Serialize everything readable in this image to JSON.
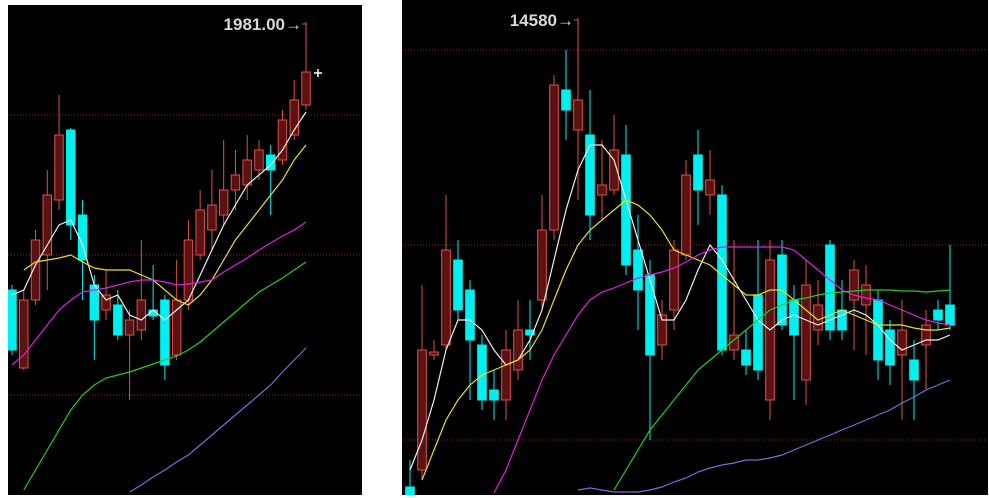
{
  "chart_data": [
    {
      "type": "candlestick",
      "annotation": {
        "value": 1981,
        "label": "1981.00→"
      },
      "ylim": [
        1035,
        2015
      ],
      "up_color": "#e0504a",
      "down_color": "#00f0f0",
      "open": [
        1445,
        1289,
        1425,
        1515,
        1625,
        1765,
        1595,
        1455,
        1405,
        1415,
        1355,
        1365,
        1405,
        1425,
        1315,
        1425,
        1515,
        1565,
        1595,
        1645,
        1655,
        1685,
        1715,
        1705,
        1755,
        1815
      ],
      "high": [
        1455,
        1445,
        1565,
        1685,
        1835,
        1769,
        1625,
        1475,
        1485,
        1445,
        1405,
        1545,
        1495,
        1435,
        1505,
        1585,
        1645,
        1685,
        1745,
        1725,
        1755,
        1745,
        1735,
        1805,
        1865,
        1981
      ],
      "low": [
        1315,
        1285,
        1415,
        1445,
        1605,
        1545,
        1425,
        1305,
        1385,
        1345,
        1225,
        1345,
        1385,
        1265,
        1305,
        1405,
        1505,
        1525,
        1575,
        1605,
        1625,
        1665,
        1595,
        1695,
        1745,
        1805
      ],
      "close": [
        1325,
        1425,
        1545,
        1635,
        1755,
        1575,
        1505,
        1385,
        1435,
        1355,
        1385,
        1425,
        1393,
        1295,
        1425,
        1545,
        1605,
        1615,
        1645,
        1675,
        1705,
        1725,
        1685,
        1785,
        1825,
        1881
      ],
      "lines": [
        {
          "color": "#f0f0f0",
          "values": [
            1435,
            1445,
            1495,
            1535,
            1575,
            1585,
            1535,
            1455,
            1425,
            1435,
            1395,
            1385,
            1405,
            1385,
            1405,
            1425,
            1475,
            1525,
            1575,
            1615,
            1655,
            1675,
            1695,
            1725,
            1765,
            1801
          ]
        },
        {
          "color": "#e8e020",
          "values": [
            null,
            1485,
            1501,
            1505,
            1509,
            1515,
            1501,
            1489,
            1485,
            1485,
            1485,
            1475,
            1465,
            1445,
            1425,
            1415,
            1435,
            1465,
            1505,
            1545,
            1575,
            1605,
            1635,
            1665,
            1705,
            1735
          ]
        },
        {
          "color": "#e020e0",
          "values": [
            1295,
            1315,
            1345,
            1375,
            1405,
            1425,
            1441,
            1445,
            1449,
            1455,
            1461,
            1465,
            1465,
            1461,
            1455,
            1457,
            1461,
            1465,
            1481,
            1495,
            1509,
            1525,
            1539,
            1553,
            1565,
            1581
          ]
        },
        {
          "color": "#20d020",
          "values": [
            null,
            1045,
            1085,
            1125,
            1165,
            1205,
            1235,
            1255,
            1269,
            1275,
            1281,
            1289,
            1297,
            1305,
            1313,
            1325,
            1341,
            1361,
            1381,
            1401,
            1421,
            1441,
            1455,
            1469,
            1485,
            1501
          ]
        },
        {
          "color": "#7070d8",
          "values": [
            null,
            null,
            null,
            null,
            null,
            null,
            null,
            null,
            null,
            null,
            1041,
            1055,
            1071,
            1085,
            1101,
            1115,
            1135,
            1155,
            1175,
            1195,
            1215,
            1235,
            1255,
            1281,
            1305,
            1329
          ]
        }
      ]
    },
    {
      "type": "candlestick",
      "annotation": {
        "value": 14580,
        "label": "14580→"
      },
      "ylim": [
        5040,
        14940
      ],
      "up_color": "#e0504a",
      "down_color": "#00f0f0",
      "open": [
        5200,
        5540,
        7840,
        8040,
        9740,
        9140,
        8040,
        7140,
        6940,
        7540,
        8340,
        8940,
        10340,
        13140,
        12340,
        12240,
        11040,
        11140,
        11840,
        9940,
        9440,
        8040,
        8740,
        9840,
        11840,
        11040,
        11040,
        7940,
        7940,
        9040,
        6940,
        9840,
        8940,
        7340,
        8340,
        10040,
        8740,
        8940,
        8840,
        8940,
        8340,
        7840,
        7740,
        8040,
        8740,
        8840
      ],
      "high": [
        5740,
        9240,
        8140,
        11040,
        10140,
        9340,
        8240,
        7540,
        8340,
        8940,
        8940,
        11040,
        13440,
        13940,
        14580,
        13140,
        12140,
        12640,
        12440,
        10640,
        9740,
        8940,
        10140,
        11740,
        12340,
        11940,
        11240,
        10140,
        8340,
        10140,
        10140,
        10140,
        9240,
        9740,
        9340,
        10140,
        9340,
        9740,
        9640,
        9140,
        8540,
        8940,
        8140,
        8740,
        8940,
        10040
      ],
      "low": [
        5040,
        5340,
        7740,
        7940,
        8540,
        6940,
        6740,
        6540,
        6540,
        7340,
        7740,
        8740,
        10140,
        12140,
        10940,
        10140,
        10540,
        11040,
        9440,
        8340,
        6140,
        7740,
        8340,
        9740,
        10440,
        10640,
        7840,
        7740,
        7440,
        7340,
        6540,
        8340,
        6940,
        6840,
        8040,
        8140,
        8140,
        7940,
        7840,
        7340,
        7240,
        6540,
        6540,
        7140,
        8340,
        8340
      ],
      "close": [
        5040,
        7940,
        7900,
        9940,
        8740,
        8140,
        6940,
        6940,
        7940,
        8340,
        8240,
        10340,
        13240,
        12740,
        12940,
        10640,
        11240,
        11940,
        9640,
        9140,
        7840,
        8640,
        9940,
        11440,
        11140,
        11340,
        7940,
        8240,
        7640,
        7540,
        9740,
        8440,
        8240,
        9240,
        8840,
        8340,
        8340,
        9540,
        9240,
        7740,
        7640,
        8340,
        7340,
        8440,
        8540,
        8440
      ],
      "lines": [
        {
          "color": "#f0f0f0",
          "values": [
            5540,
            6140,
            6940,
            7940,
            8540,
            8540,
            8340,
            7940,
            7640,
            7740,
            8140,
            8740,
            9740,
            10740,
            11540,
            12040,
            12040,
            11740,
            10940,
            10140,
            9340,
            8540,
            8540,
            8940,
            9540,
            10040,
            9740,
            9340,
            8940,
            8540,
            8340,
            8540,
            8640,
            8540,
            8440,
            8540,
            8640,
            8740,
            8640,
            8440,
            8140,
            7940,
            8040,
            8140,
            8140,
            8240
          ]
        },
        {
          "color": "#e8e020",
          "values": [
            null,
            5340,
            5940,
            6540,
            6940,
            7240,
            7440,
            7540,
            7640,
            7740,
            7940,
            8340,
            8940,
            9540,
            10040,
            10340,
            10540,
            10740,
            10940,
            10840,
            10640,
            10340,
            9940,
            9840,
            9740,
            9640,
            9440,
            9240,
            9040,
            9040,
            9140,
            9140,
            8940,
            8740,
            8540,
            8640,
            8740,
            8640,
            8540,
            8440,
            8440,
            8440,
            8380,
            8340,
            8340,
            8380
          ]
        },
        {
          "color": "#e020e0",
          "values": [
            null,
            null,
            null,
            null,
            null,
            null,
            null,
            5080,
            5540,
            6140,
            6740,
            7340,
            7840,
            8240,
            8640,
            8940,
            9100,
            9180,
            9280,
            9380,
            9440,
            9500,
            9580,
            9700,
            9840,
            9940,
            10000,
            10000,
            10000,
            10000,
            10000,
            10000,
            9940,
            9740,
            9540,
            9340,
            9140,
            9040,
            8980,
            8940,
            8840,
            8740,
            8640,
            8540,
            8480,
            8440
          ]
        },
        {
          "color": "#20d020",
          "values": [
            null,
            null,
            null,
            null,
            null,
            null,
            null,
            null,
            null,
            null,
            null,
            null,
            null,
            null,
            null,
            null,
            null,
            5140,
            5540,
            5940,
            6340,
            6640,
            6940,
            7240,
            7540,
            7740,
            7940,
            8140,
            8340,
            8540,
            8740,
            8840,
            8940,
            8980,
            9040,
            9080,
            9100,
            9120,
            9140,
            9140,
            9140,
            9120,
            9120,
            9100,
            9120,
            9140
          ]
        },
        {
          "color": "#7070d8",
          "values": [
            null,
            null,
            null,
            null,
            null,
            null,
            null,
            null,
            null,
            null,
            null,
            null,
            null,
            null,
            5140,
            5180,
            5140,
            5100,
            5100,
            5100,
            5140,
            5200,
            5300,
            5380,
            5500,
            5580,
            5640,
            5680,
            5740,
            5740,
            5780,
            5840,
            5940,
            6040,
            6140,
            6240,
            6340,
            6440,
            6540,
            6640,
            6740,
            6880,
            7000,
            7140,
            7240,
            7340
          ]
        }
      ]
    }
  ]
}
